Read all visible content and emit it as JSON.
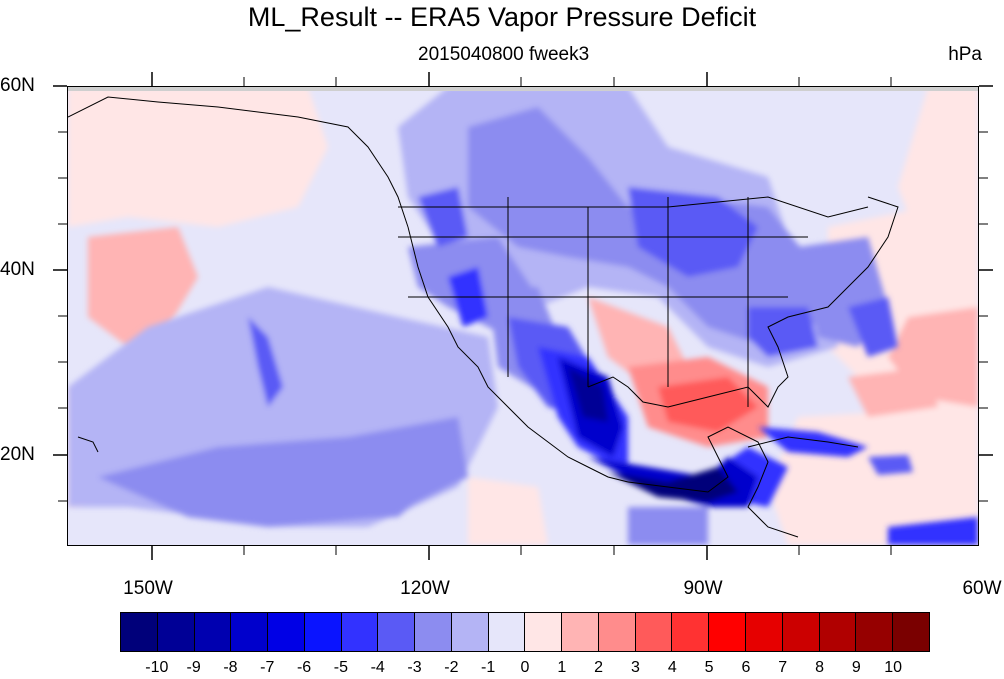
{
  "title": "ML_Result -- ERA5 Vapor Pressure Deficit",
  "subtitle": "2015040800 fweek3",
  "units": "hPa",
  "map": {
    "projection": "cylindrical equidistant",
    "lon_range": [
      -159,
      -60
    ],
    "lat_range": [
      10,
      60
    ],
    "lat_labels": [
      "60N",
      "40N",
      "20N"
    ],
    "lon_labels": [
      "150W",
      "120W",
      "90W",
      "60W"
    ]
  },
  "colorbar": {
    "colors": [
      "#00007a",
      "#000096",
      "#0000b0",
      "#0000cc",
      "#0000e6",
      "#0a14ff",
      "#3232ff",
      "#5a5af5",
      "#8c8cf0",
      "#b4b4f5",
      "#e6e6fa",
      "#ffe6e6",
      "#ffb4b4",
      "#ff8c8c",
      "#ff5a5a",
      "#ff3232",
      "#ff0000",
      "#e60000",
      "#cc0000",
      "#b00000",
      "#960000",
      "#7a0000"
    ],
    "labels": [
      "-10",
      "-9",
      "-8",
      "-7",
      "-6",
      "-5",
      "-4",
      "-3",
      "-2",
      "-1",
      "0",
      "1",
      "2",
      "3",
      "4",
      "5",
      "6",
      "7",
      "8",
      "9",
      "10"
    ]
  }
}
